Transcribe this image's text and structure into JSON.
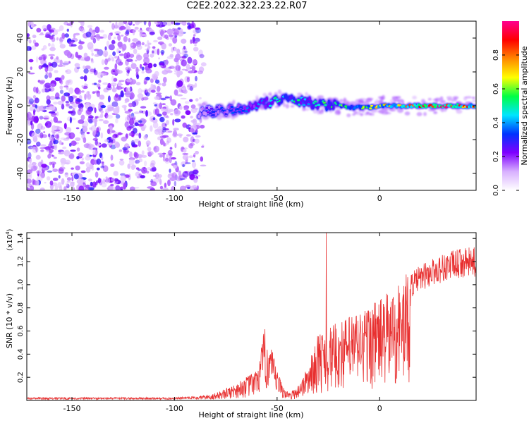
{
  "title": "C2E2.2022.322.23.22.R07",
  "chart_data": [
    {
      "type": "heatmap",
      "title": "C2E2.2022.322.23.22.R07",
      "xlabel": "Height of straight line (km)",
      "ylabel": "Frequency (Hz)",
      "xlim": [
        -172,
        47
      ],
      "ylim": [
        -50,
        50
      ],
      "x_ticks": [
        -150,
        -100,
        -50,
        0
      ],
      "y_ticks": [
        -40,
        -20,
        0,
        20,
        40
      ],
      "noise_region_x": [
        -172,
        -87
      ],
      "signal_ridge": {
        "x": [
          -88,
          -80,
          -70,
          -60,
          -55,
          -50,
          -45,
          -40,
          -35,
          -30,
          -25,
          -20,
          -15,
          -10,
          -5,
          0,
          5,
          10,
          20,
          30,
          40,
          47
        ],
        "frequency": [
          -4,
          -3,
          -2,
          0,
          2,
          3,
          4,
          3,
          2,
          1,
          0,
          0,
          -1,
          -1,
          -1,
          0,
          0,
          0,
          0,
          0,
          0,
          0
        ],
        "amplitude": [
          0.25,
          0.3,
          0.35,
          0.4,
          0.45,
          0.5,
          0.55,
          0.5,
          0.45,
          0.5,
          0.55,
          0.55,
          0.6,
          0.65,
          0.65,
          0.7,
          0.75,
          0.8,
          0.9,
          0.95,
          0.85,
          0.8
        ]
      },
      "colorbar": {
        "label": "Normalized spectral amplitude",
        "range": [
          0,
          1
        ],
        "ticks": [
          "0.0",
          "0.2",
          "0.4",
          "0.6",
          "0.8"
        ],
        "colors": [
          "#ffffff",
          "#d8b0ff",
          "#7f00ff",
          "#0033ff",
          "#00e5ff",
          "#00ff44",
          "#ffff00",
          "#ff8800",
          "#ff0000",
          "#ff0090"
        ]
      }
    },
    {
      "type": "line",
      "xlabel": "Height of straight line (km)",
      "ylabel": "SNR (10 * v/v)",
      "y_multiplier": "(x10",
      "y_multiplier_exp": "4",
      "xlim": [
        -172,
        47
      ],
      "ylim": [
        0,
        14500
      ],
      "x_ticks": [
        -150,
        -100,
        -50,
        0
      ],
      "y_ticks": [
        0.2,
        0.4,
        0.6,
        0.8,
        1.0,
        1.2,
        1.4
      ],
      "y_tick_labels": [
        "0.2",
        "0.4",
        "0.6",
        "0.8",
        "1.0",
        "1.2",
        "1.4"
      ],
      "color": "#e83030",
      "envelope": {
        "x": [
          -172,
          -100,
          -90,
          -80,
          -70,
          -60,
          -56,
          -53,
          -50,
          -47,
          -44,
          -40,
          -35,
          -30,
          -27,
          -25,
          -20,
          -15,
          -10,
          -5,
          0,
          5,
          10,
          15,
          20,
          25,
          30,
          35,
          40,
          47
        ],
        "y": [
          200,
          200,
          300,
          600,
          1400,
          2500,
          6000,
          4500,
          2500,
          1200,
          600,
          1200,
          2800,
          5500,
          6000,
          6000,
          6500,
          7000,
          7500,
          8000,
          8500,
          9000,
          10000,
          10800,
          11500,
          12000,
          12400,
          12700,
          12900,
          13000
        ]
      },
      "peak": {
        "x": -26,
        "y": 14500
      }
    }
  ]
}
